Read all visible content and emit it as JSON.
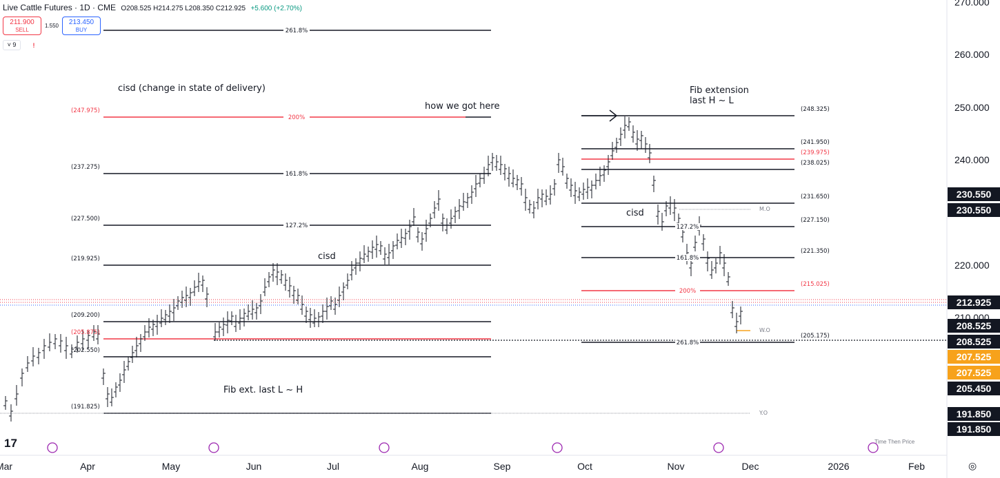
{
  "header": {
    "title": "Live Cattle Futures · 1D · CME",
    "ohlc": "O208.525 H214.275 L208.350 C212.925",
    "change": "+5.600 (+2.70%)",
    "sell_price": "211.900",
    "sell_label": "SELL",
    "buy_price": "213.450",
    "buy_label": "BUY",
    "spread": "1.550",
    "indicator_count": "9",
    "alert_icon": "!"
  },
  "colors": {
    "up": "#089981",
    "down": "#f23645",
    "accent": "#2962ff",
    "orange": "#f7a21b",
    "dark": "#131722"
  },
  "axis": {
    "price_labels": [
      "270.000",
      "260.000",
      "250.000",
      "240.000",
      "220.000",
      "210.000"
    ],
    "time_labels": [
      "Mar",
      "Apr",
      "May",
      "Jun",
      "Jul",
      "Aug",
      "Sep",
      "Oct",
      "Nov",
      "Dec",
      "2026",
      "Feb"
    ]
  },
  "price_tags": [
    {
      "text": "230.550",
      "color": "#131722"
    },
    {
      "text": "230.550",
      "color": "#131722"
    },
    {
      "text": "212.925",
      "color": "#131722"
    },
    {
      "text": "208.525",
      "color": "#131722"
    },
    {
      "text": "208.525",
      "color": "#131722"
    },
    {
      "text": "207.525",
      "color": "#f7a21b"
    },
    {
      "text": "207.525",
      "color": "#f7a21b"
    },
    {
      "text": "205.450",
      "color": "#131722"
    },
    {
      "text": "191.850",
      "color": "#131722"
    },
    {
      "text": "191.850",
      "color": "#131722"
    }
  ],
  "annotations": {
    "cisd_title": "cisd (change in state of delivery)",
    "how": "how we got here",
    "fib_ext_1": "Fib extension",
    "fib_ext_2": "last H ~ L",
    "cisd_left": "cisd",
    "cisd_right": "cisd",
    "fib_ext_lh": "Fib ext. last L ~ H"
  },
  "fib_left": [
    {
      "pct": "261.8%",
      "price": "",
      "red": false
    },
    {
      "pct": "200%",
      "price": "(247.975)",
      "red": true
    },
    {
      "pct": "161.8%",
      "price": "(237.275)",
      "red": false
    },
    {
      "pct": "127.2%",
      "price": "(227.500)",
      "red": false
    },
    {
      "pct": "",
      "price": "(219.925)",
      "red": false
    },
    {
      "pct": "",
      "price": "(209.200)",
      "red": false
    },
    {
      "pct": "",
      "price": "(205.875)",
      "red": true
    },
    {
      "pct": "",
      "price": "(202.550)",
      "red": false
    },
    {
      "pct": "",
      "price": "(191.825)",
      "red": false
    }
  ],
  "fib_right": [
    {
      "pct": "",
      "price": "(248.325)",
      "red": false
    },
    {
      "pct": "",
      "price": "(241.950)",
      "red": false
    },
    {
      "pct": "",
      "price": "(239.975)",
      "red": true
    },
    {
      "pct": "",
      "price": "(238.025)",
      "red": false
    },
    {
      "pct": "",
      "price": "(231.650)",
      "red": false
    },
    {
      "pct": "127.2%",
      "price": "(227.150)",
      "red": false
    },
    {
      "pct": "161.8%",
      "price": "(221.350)",
      "red": false
    },
    {
      "pct": "200%",
      "price": "(215.025)",
      "red": true
    },
    {
      "pct": "261.8%",
      "price": "(205.175)",
      "red": false
    }
  ],
  "level_labels": {
    "mo": "M.O",
    "wo": "W.O",
    "yo": "Y.O"
  },
  "footer": {
    "logo": "17",
    "time_then_price": "Time Then Price",
    "settings_icon": "◎"
  }
}
